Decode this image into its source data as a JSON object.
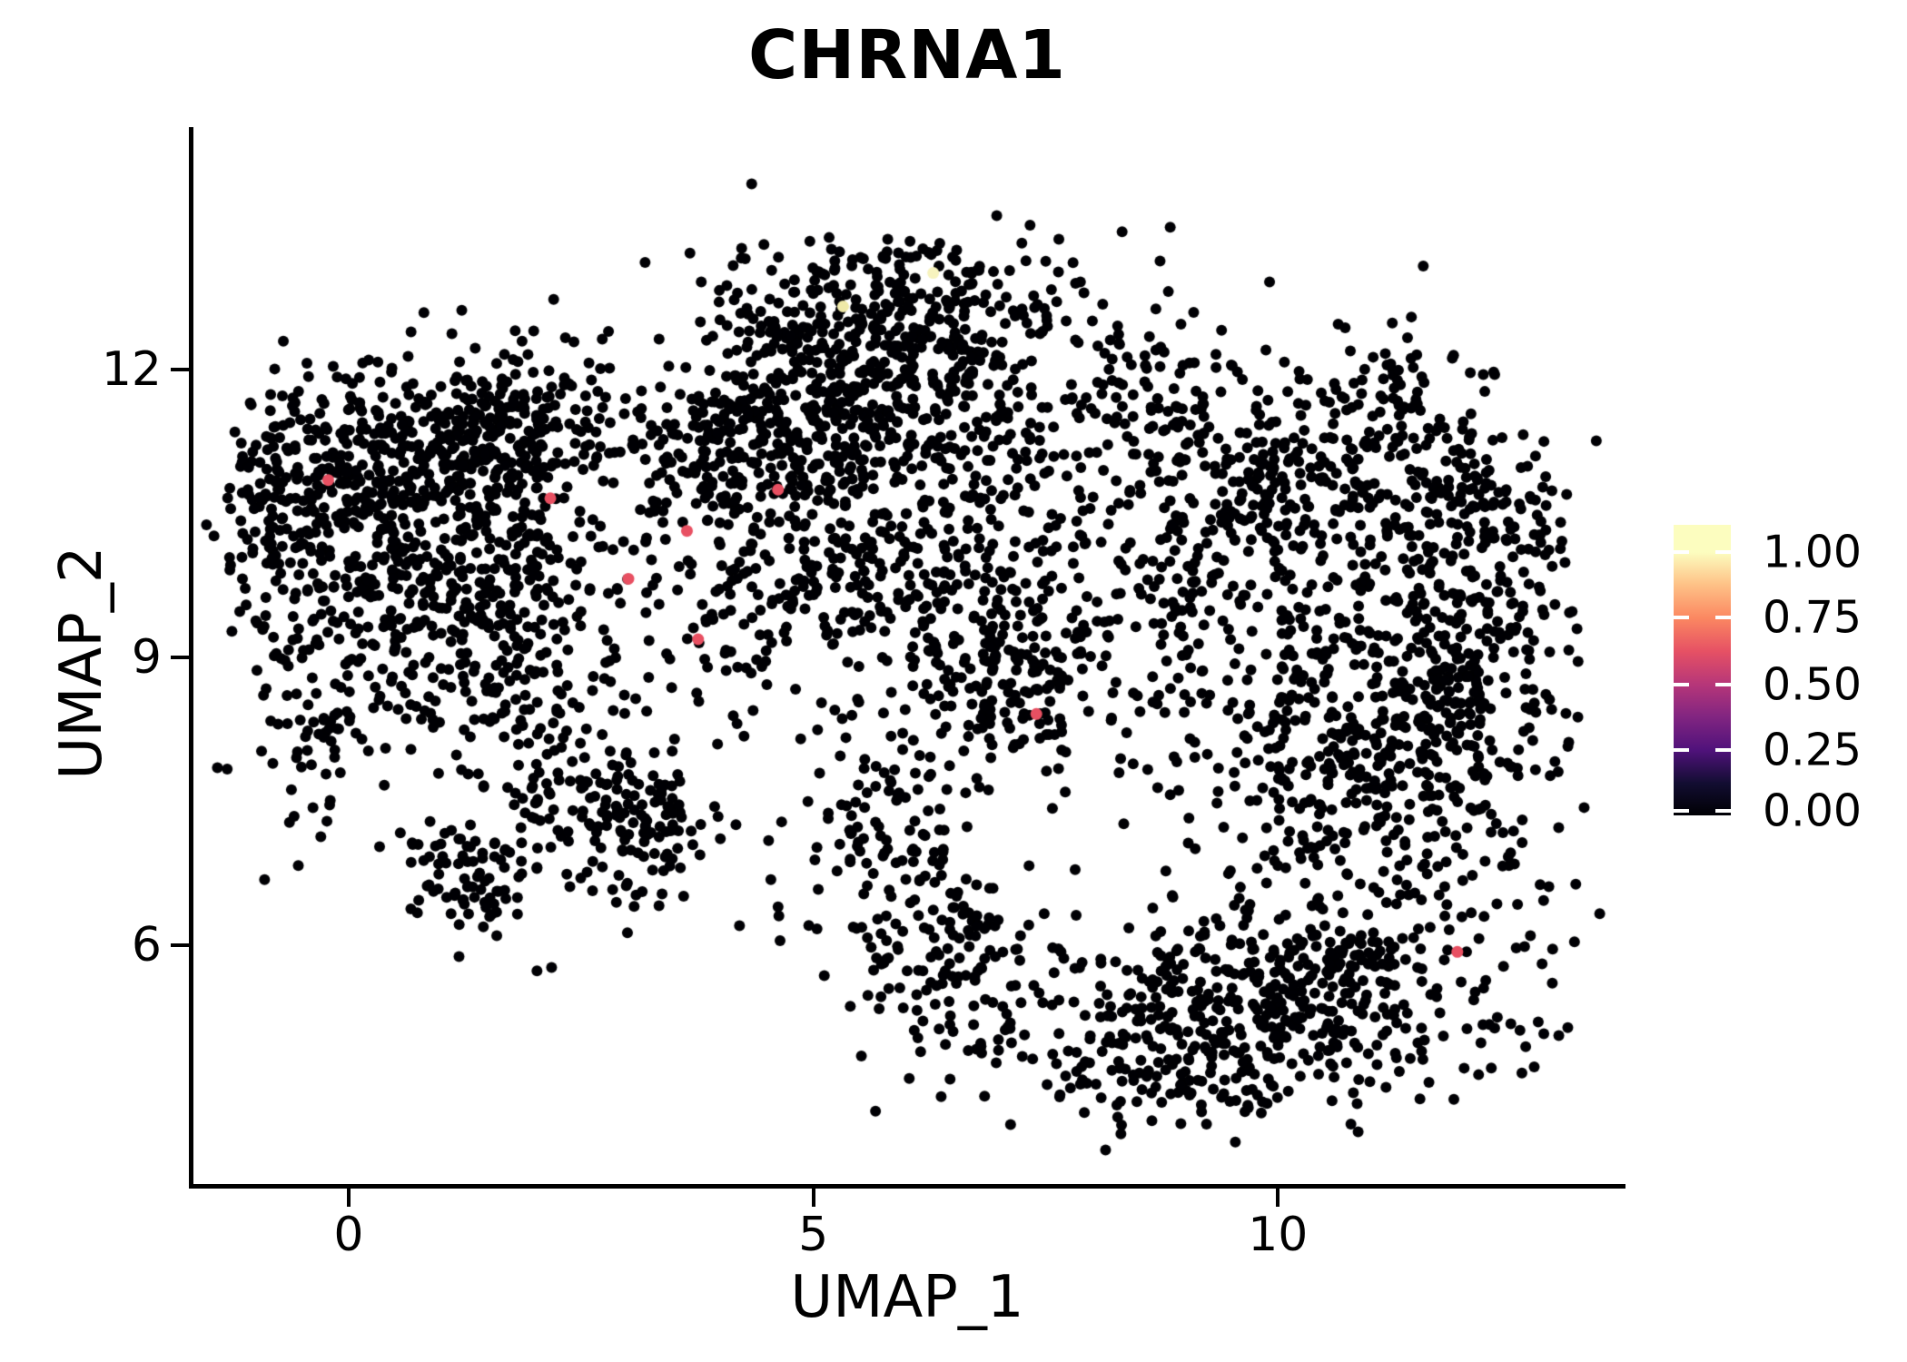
{
  "title": "CHRNA1",
  "axes": {
    "x_label": "UMAP_1",
    "y_label": "UMAP_2",
    "x_ticks": [
      0,
      5,
      10
    ],
    "y_ticks": [
      6,
      9,
      12
    ]
  },
  "legend": {
    "tick_labels": [
      "1.00",
      "0.75",
      "0.50",
      "0.25",
      "0.00"
    ],
    "tick_fractions_from_top": [
      0.094,
      0.32,
      0.549,
      0.775,
      0.985
    ],
    "colormap": "magma",
    "gradient_stops_bottom_to_top": [
      {
        "c": "#000004",
        "p": 0
      },
      {
        "c": "#120D31",
        "p": 11
      },
      {
        "c": "#50127B",
        "p": 22.5
      },
      {
        "c": "#822581",
        "p": 34
      },
      {
        "c": "#B63679",
        "p": 45
      },
      {
        "c": "#E65164",
        "p": 56.5
      },
      {
        "c": "#FB8861",
        "p": 68
      },
      {
        "c": "#FEC287",
        "p": 79.5
      },
      {
        "c": "#FCFDBF",
        "p": 90.5
      },
      {
        "c": "#FCFDBF",
        "p": 100
      }
    ]
  },
  "chart_data": {
    "type": "scatter",
    "title": "CHRNA1",
    "xlabel": "UMAP_1",
    "ylabel": "UMAP_2",
    "x_domain": [
      -1.7,
      13.72
    ],
    "y_domain": [
      3.49,
      14.53
    ],
    "grid": false,
    "point_radius_px": 6,
    "background_point_color": "#000004",
    "random_seed": 20240613,
    "background_clusters": [
      {
        "x": 0.85,
        "y": 10.9,
        "sx": 0.95,
        "sy": 0.6,
        "n": 500
      },
      {
        "x": 1.6,
        "y": 11.5,
        "sx": 0.75,
        "sy": 0.35,
        "n": 150
      },
      {
        "x": -0.7,
        "y": 10.7,
        "sx": 0.35,
        "sy": 0.55,
        "n": 110
      },
      {
        "x": 0.9,
        "y": 9.55,
        "sx": 0.95,
        "sy": 0.5,
        "n": 260
      },
      {
        "x": 1.4,
        "y": 8.7,
        "sx": 1.1,
        "sy": 0.45,
        "n": 110
      },
      {
        "x": -0.4,
        "y": 8.3,
        "sx": 0.4,
        "sy": 0.6,
        "n": 60
      },
      {
        "x": 1.35,
        "y": 6.8,
        "sx": 0.4,
        "sy": 0.35,
        "n": 90
      },
      {
        "x": 3.05,
        "y": 7.3,
        "sx": 0.45,
        "sy": 0.4,
        "n": 130
      },
      {
        "x": 2.1,
        "y": 7.9,
        "sx": 0.6,
        "sy": 0.5,
        "n": 70
      },
      {
        "x": 5.6,
        "y": 12.1,
        "sx": 0.95,
        "sy": 0.55,
        "n": 420
      },
      {
        "x": 6.2,
        "y": 12.9,
        "sx": 0.8,
        "sy": 0.3,
        "n": 100
      },
      {
        "x": 4.3,
        "y": 11.2,
        "sx": 0.8,
        "sy": 0.55,
        "n": 230
      },
      {
        "x": 6.3,
        "y": 11.0,
        "sx": 1.1,
        "sy": 0.5,
        "n": 240
      },
      {
        "x": 8.7,
        "y": 11.8,
        "sx": 0.7,
        "sy": 0.5,
        "n": 110
      },
      {
        "x": 5.0,
        "y": 9.8,
        "sx": 1.2,
        "sy": 0.55,
        "n": 260
      },
      {
        "x": 7.1,
        "y": 8.9,
        "sx": 0.6,
        "sy": 0.6,
        "n": 230
      },
      {
        "x": 8.7,
        "y": 9.6,
        "sx": 0.6,
        "sy": 0.7,
        "n": 80
      },
      {
        "x": 5.8,
        "y": 7.0,
        "sx": 0.55,
        "sy": 0.7,
        "n": 140
      },
      {
        "x": 6.5,
        "y": 5.6,
        "sx": 0.55,
        "sy": 0.5,
        "n": 110
      },
      {
        "x": 10.4,
        "y": 10.9,
        "sx": 1.0,
        "sy": 0.5,
        "n": 240
      },
      {
        "x": 11.1,
        "y": 12.0,
        "sx": 0.35,
        "sy": 0.3,
        "n": 45
      },
      {
        "x": 11.9,
        "y": 8.7,
        "sx": 0.6,
        "sy": 1.2,
        "n": 430
      },
      {
        "x": 10.5,
        "y": 8.0,
        "sx": 0.85,
        "sy": 1.0,
        "n": 280
      },
      {
        "x": 10.2,
        "y": 5.5,
        "sx": 1.15,
        "sy": 0.6,
        "n": 430
      },
      {
        "x": 8.6,
        "y": 4.9,
        "sx": 0.7,
        "sy": 0.45,
        "n": 150
      },
      {
        "x": 9.7,
        "y": 9.8,
        "sx": 0.7,
        "sy": 0.8,
        "n": 100
      },
      {
        "x": 12.3,
        "y": 10.3,
        "sx": 0.4,
        "sy": 0.6,
        "n": 90
      }
    ],
    "expressing_cells": [
      {
        "x": -0.22,
        "y": 10.85,
        "value": 0.65,
        "color": "#E85062"
      },
      {
        "x": 2.17,
        "y": 10.66,
        "value": 0.65,
        "color": "#E85062"
      },
      {
        "x": 4.62,
        "y": 10.75,
        "value": 0.65,
        "color": "#E85062"
      },
      {
        "x": 3.64,
        "y": 10.32,
        "value": 0.65,
        "color": "#E85062"
      },
      {
        "x": 3.01,
        "y": 9.82,
        "value": 0.65,
        "color": "#E85062"
      },
      {
        "x": 3.76,
        "y": 9.19,
        "value": 0.65,
        "color": "#E85062"
      },
      {
        "x": 7.4,
        "y": 8.41,
        "value": 0.65,
        "color": "#E85062"
      },
      {
        "x": 11.93,
        "y": 5.93,
        "value": 0.65,
        "color": "#E85062"
      },
      {
        "x": 6.29,
        "y": 13.01,
        "value": 1.0,
        "color": "#F7F3BE"
      },
      {
        "x": 5.32,
        "y": 12.66,
        "value": 0.95,
        "color": "#EFE9A8"
      }
    ]
  }
}
